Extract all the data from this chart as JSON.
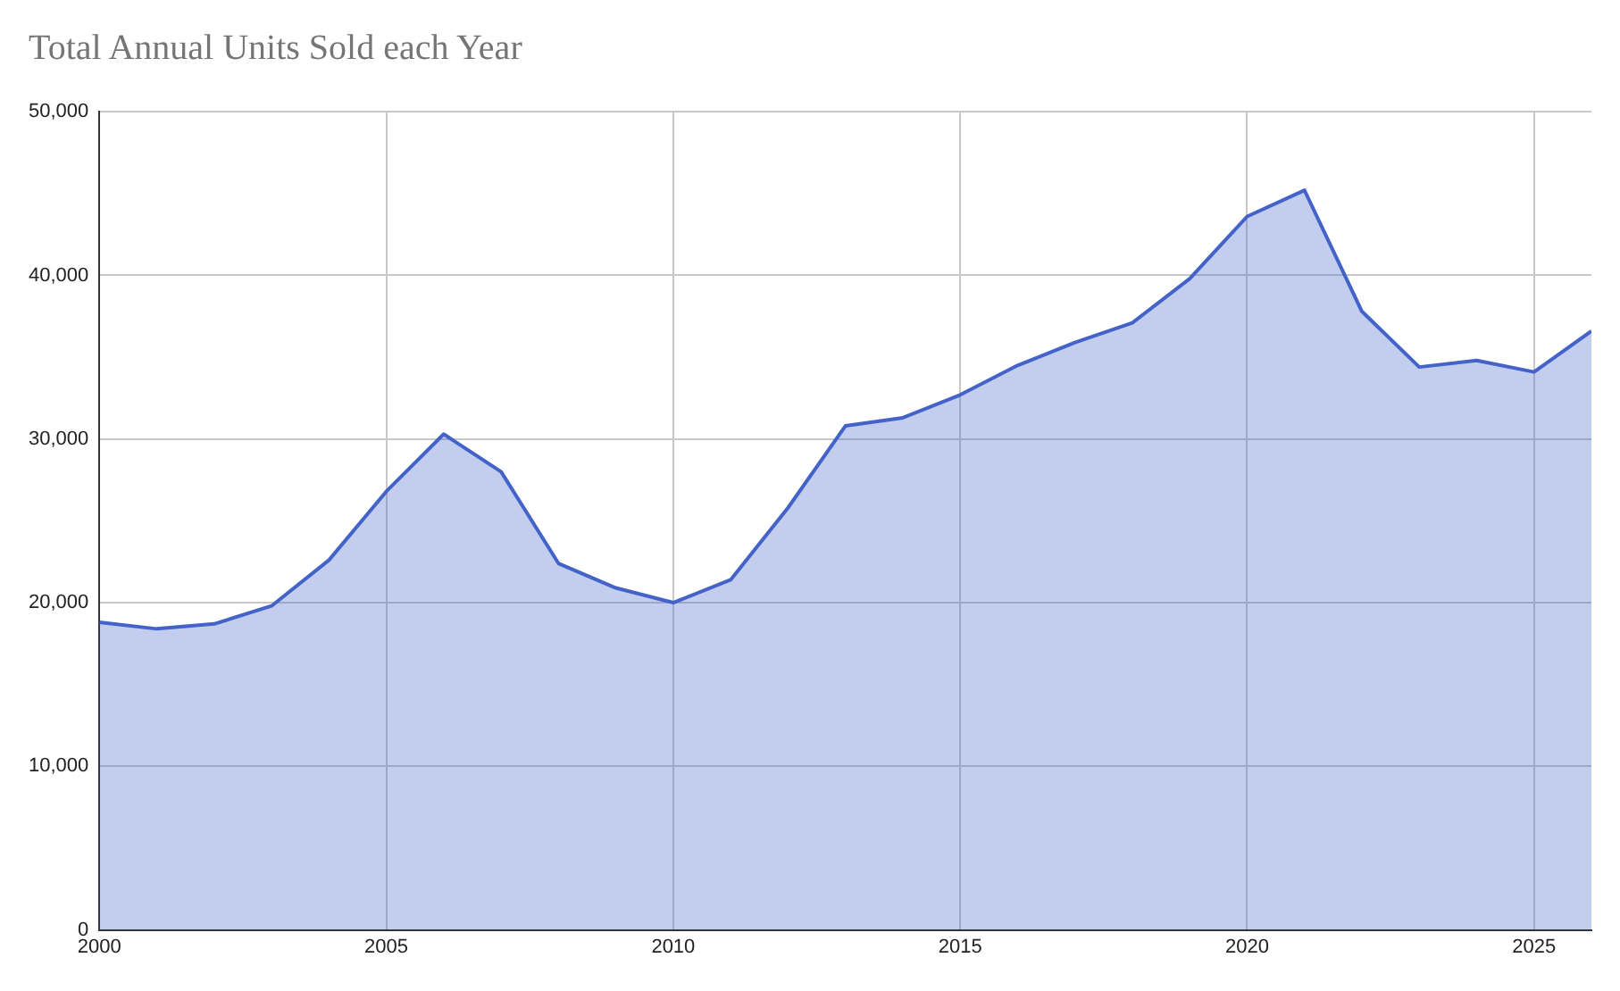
{
  "chart_data": {
    "type": "area",
    "title": "Total Annual Units Sold each Year",
    "x": [
      2000,
      2001,
      2002,
      2003,
      2004,
      2005,
      2006,
      2007,
      2008,
      2009,
      2010,
      2011,
      2012,
      2013,
      2014,
      2015,
      2016,
      2017,
      2018,
      2019,
      2020,
      2021,
      2022,
      2023,
      2024,
      2025,
      2026
    ],
    "series": [
      {
        "color": "#4363c9",
        "values": [
          18800,
          18400,
          18700,
          19800,
          22600,
          26800,
          30300,
          28000,
          22400,
          20900,
          20000,
          21400,
          25800,
          30800,
          31300,
          32700,
          34500,
          35900,
          37100,
          39800,
          43600,
          45200,
          37800,
          34400,
          34800,
          34100,
          36600
        ]
      }
    ],
    "xlim": [
      2000,
      2026
    ],
    "xticks": [
      2000,
      2005,
      2010,
      2015,
      2020,
      2025
    ],
    "ylim": [
      0,
      50000
    ],
    "yticks": [
      {
        "value": 0,
        "label": "0"
      },
      {
        "value": 10000,
        "label": "10,000"
      },
      {
        "value": 20000,
        "label": "20,000"
      },
      {
        "value": 30000,
        "label": "30,000"
      },
      {
        "value": 40000,
        "label": "40,000"
      },
      {
        "value": 50000,
        "label": "50,000"
      }
    ],
    "grid": true,
    "legend": false,
    "marker": "none"
  }
}
